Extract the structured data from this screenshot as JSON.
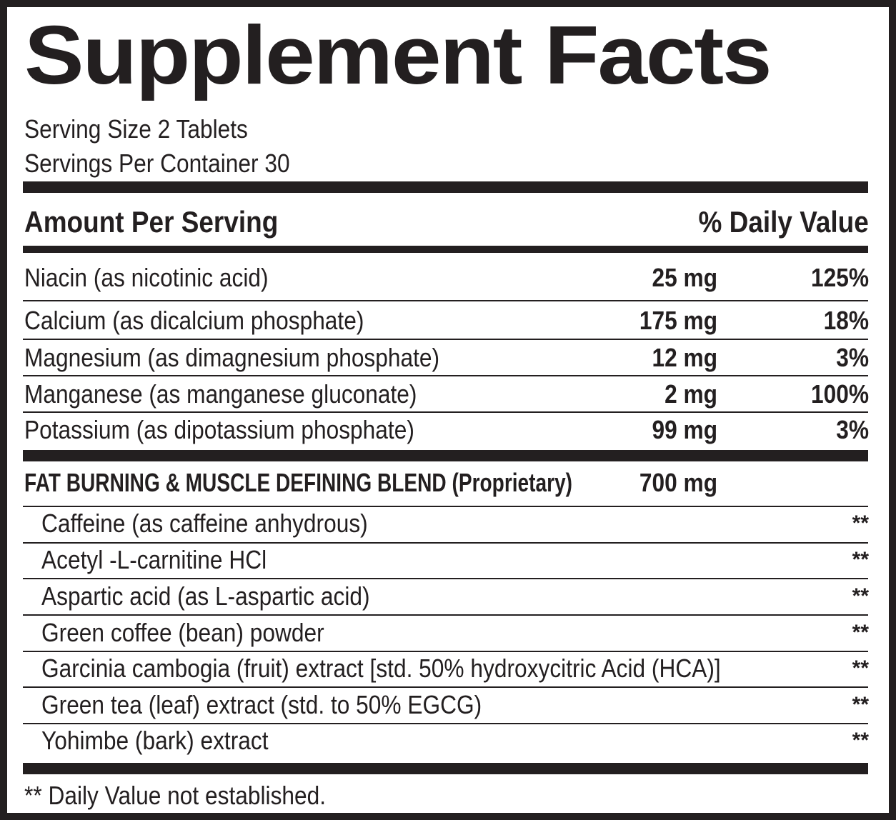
{
  "title": "Supplement Facts",
  "serving_size": "Serving Size 2 Tablets",
  "servings_per_container": "Servings Per Container 30",
  "header": {
    "amount_per_serving": "Amount Per Serving",
    "daily_value": "% Daily Value"
  },
  "nutrients": [
    {
      "name": "Niacin (as nicotinic acid)",
      "amount": "25 mg",
      "dv": "125%"
    },
    {
      "name": "Calcium (as dicalcium phosphate)",
      "amount": "175 mg",
      "dv": "18%"
    },
    {
      "name": "Magnesium (as dimagnesium phosphate)",
      "amount": "12 mg",
      "dv": "3%"
    },
    {
      "name": "Manganese (as manganese gluconate)",
      "amount": "2 mg",
      "dv": "100%"
    },
    {
      "name": "Potassium (as dipotassium phosphate)",
      "amount": "99 mg",
      "dv": "3%"
    }
  ],
  "blend": {
    "title": "FAT BURNING & MUSCLE DEFINING BLEND (Proprietary)",
    "amount": "700 mg",
    "ingredients": [
      {
        "name": "Caffeine (as caffeine anhydrous)",
        "dv": "**"
      },
      {
        "name": "Acetyl -L-carnitine HCl",
        "dv": "**"
      },
      {
        "name": "Aspartic acid (as L-aspartic acid)",
        "dv": "**"
      },
      {
        "name": "Green coffee (bean) powder",
        "dv": "**"
      },
      {
        "name": "Garcinia cambogia (fruit) extract [std. 50% hydroxycitric Acid (HCA)]",
        "dv": "**"
      },
      {
        "name": "Green tea (leaf) extract (std. to 50% EGCG)",
        "dv": "**"
      },
      {
        "name": "Yohimbe (bark) extract",
        "dv": "**"
      }
    ]
  },
  "footnote": "** Daily Value not established.",
  "colors": {
    "ink": "#231f20",
    "background": "#ffffff"
  }
}
